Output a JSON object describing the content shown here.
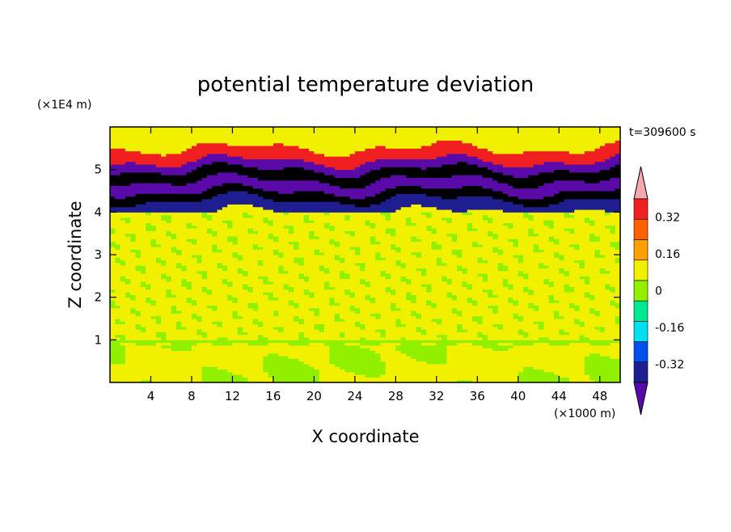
{
  "chart_data": {
    "type": "heatmap",
    "title": "potential temperature deviation",
    "xlabel": "X coordinate",
    "ylabel": "Z coordinate",
    "x_unit": "(×1000 m)",
    "y_unit": "(×1E4 m)",
    "time_label": "t=309600 s",
    "xlim": [
      0,
      50
    ],
    "ylim": [
      0,
      6
    ],
    "x_ticks": [
      4,
      8,
      12,
      16,
      20,
      24,
      28,
      32,
      36,
      40,
      44,
      48
    ],
    "y_ticks": [
      1,
      2,
      3,
      4,
      5
    ],
    "colorbar": {
      "levels": [
        -0.4,
        -0.32,
        -0.24,
        -0.16,
        -0.08,
        0,
        0.08,
        0.16,
        0.24,
        0.32,
        0.4
      ],
      "labeled_ticks": [
        0.32,
        0.16,
        0,
        -0.16,
        -0.32
      ],
      "colors": [
        "#5a0aa8",
        "#1e1e90",
        "#0050f0",
        "#00e0f0",
        "#00e890",
        "#90f000",
        "#f0f000",
        "#ffa000",
        "#ff6000",
        "#f02020",
        "#f4a8b0"
      ],
      "extend": "both"
    },
    "bands": [
      {
        "z": [
          0.0,
          0.9
        ],
        "value": 0.04,
        "note": "near-zero field with patches"
      },
      {
        "z": [
          0.9,
          1.0
        ],
        "value": -0.04,
        "note": "thin perturbed layer near z=1"
      },
      {
        "z": [
          1.0,
          4.0
        ],
        "value": 0.04,
        "note": "mixed small positive/negative streaks"
      },
      {
        "z": [
          4.0,
          4.3
        ],
        "value": -0.36,
        "note": "negative layer"
      },
      {
        "z": [
          4.3,
          4.5
        ],
        "value": 0.42,
        "note": "strong positive layer"
      },
      {
        "z": [
          4.5,
          4.75
        ],
        "value": -0.42,
        "note": "strong negative layer"
      },
      {
        "z": [
          4.75,
          5.0
        ],
        "value": 0.42,
        "note": "strong positive layer"
      },
      {
        "z": [
          5.0,
          5.2
        ],
        "value": -0.42,
        "note": "strong negative layer"
      },
      {
        "z": [
          5.2,
          5.5
        ],
        "value": 0.3,
        "note": "positive cap"
      },
      {
        "z": [
          5.5,
          6.0
        ],
        "value": 0.04,
        "note": "near-zero above"
      }
    ]
  }
}
